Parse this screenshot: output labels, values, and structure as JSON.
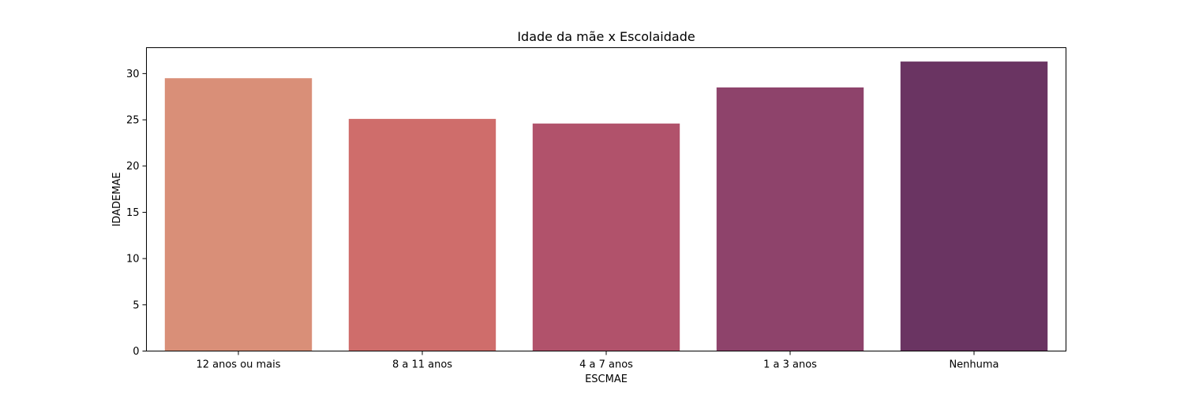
{
  "chart_data": {
    "type": "bar",
    "title": "Idade da mãe x Escolaidade",
    "xlabel": "ESCMAE",
    "ylabel": "IDADEMAE",
    "categories": [
      "12 anos ou mais",
      "8 a 11 anos",
      "4 a 7 anos",
      "1 a 3 anos",
      "Nenhuma"
    ],
    "values": [
      29.5,
      25.1,
      24.6,
      28.5,
      31.3
    ],
    "colors": [
      "#d98f78",
      "#cf6d6b",
      "#b1526b",
      "#8e436b",
      "#6a3462"
    ],
    "ylim": [
      0,
      32.8
    ],
    "yticks": [
      0,
      5,
      10,
      15,
      20,
      25,
      30
    ],
    "grid": false
  }
}
